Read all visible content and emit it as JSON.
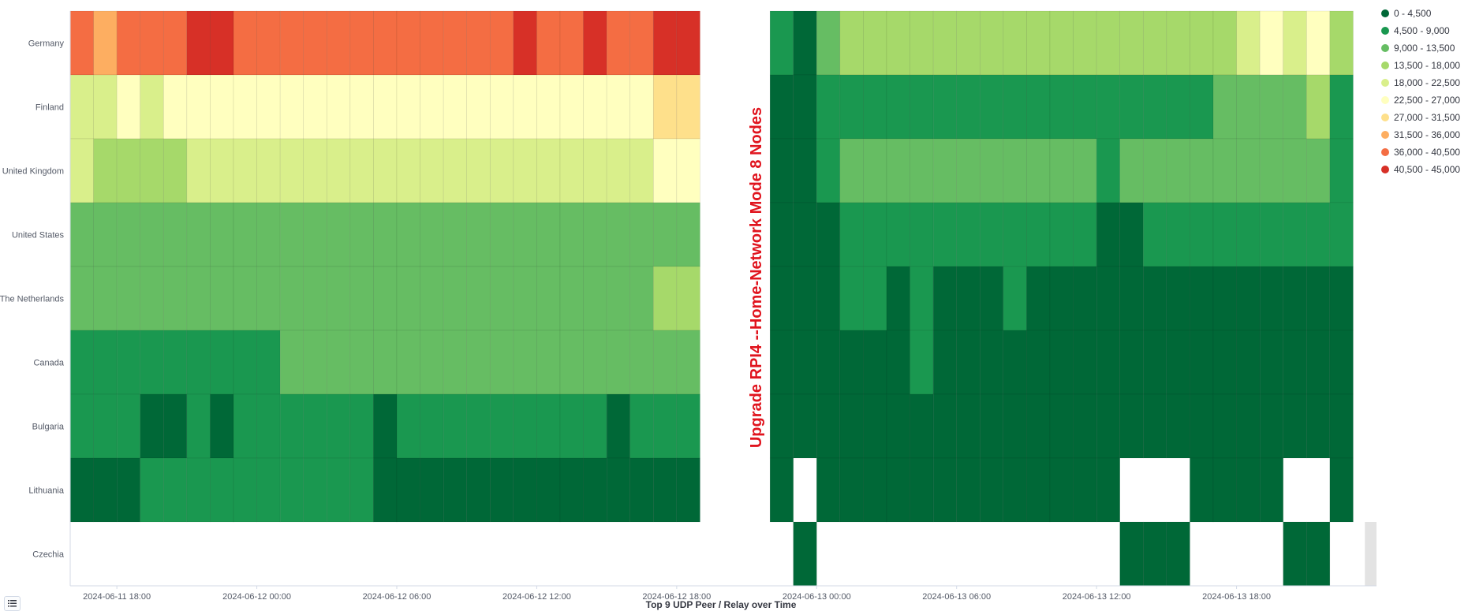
{
  "chart_data": {
    "type": "heatmap",
    "xlabel": "Top 9 UDP Peer / Relay over Time",
    "annotation": "Upgrade RPI4 --Home-Network Mode 8 Nodes",
    "y_categories": [
      "Germany",
      "Finland",
      "United Kingdom",
      "United States",
      "The Netherlands",
      "Canada",
      "Bulgaria",
      "Lithuania",
      "Czechia"
    ],
    "x_tick_labels": [
      "2024-06-11 18:00",
      "2024-06-12 00:00",
      "2024-06-12 06:00",
      "2024-06-12 12:00",
      "2024-06-12 18:00",
      "2024-06-13 00:00",
      "2024-06-13 06:00",
      "2024-06-13 12:00",
      "2024-06-13 18:00"
    ],
    "x_range": [
      "2024-06-11 16:00",
      "2024-06-14 00:00"
    ],
    "bucket_interval_hours": 1,
    "left_panel_buckets": [
      "2024-06-11 16:00",
      "2024-06-11 17:00",
      "2024-06-11 18:00",
      "2024-06-11 19:00",
      "2024-06-11 20:00",
      "2024-06-11 21:00",
      "2024-06-11 22:00",
      "2024-06-11 23:00",
      "2024-06-12 00:00",
      "2024-06-12 01:00",
      "2024-06-12 02:00",
      "2024-06-12 03:00",
      "2024-06-12 04:00",
      "2024-06-12 05:00",
      "2024-06-12 06:00",
      "2024-06-12 07:00",
      "2024-06-12 08:00",
      "2024-06-12 09:00",
      "2024-06-12 10:00",
      "2024-06-12 11:00",
      "2024-06-12 12:00",
      "2024-06-12 13:00",
      "2024-06-12 14:00",
      "2024-06-12 15:00",
      "2024-06-12 16:00",
      "2024-06-12 17:00",
      "2024-06-12 18:00"
    ],
    "right_panel_buckets": [
      "2024-06-12 22:00",
      "2024-06-12 23:00",
      "2024-06-13 00:00",
      "2024-06-13 01:00",
      "2024-06-13 02:00",
      "2024-06-13 03:00",
      "2024-06-13 04:00",
      "2024-06-13 05:00",
      "2024-06-13 06:00",
      "2024-06-13 07:00",
      "2024-06-13 08:00",
      "2024-06-13 09:00",
      "2024-06-13 10:00",
      "2024-06-13 11:00",
      "2024-06-13 12:00",
      "2024-06-13 13:00",
      "2024-06-13 14:00",
      "2024-06-13 15:00",
      "2024-06-13 16:00",
      "2024-06-13 17:00",
      "2024-06-13 18:00",
      "2024-06-13 19:00",
      "2024-06-13 20:00",
      "2024-06-13 21:00",
      "2024-06-13 22:00"
    ],
    "legend": {
      "position": "right",
      "ranges": [
        "0 - 4,500",
        "4,500 - 9,000",
        "9,000 - 13,500",
        "13,500 - 18,000",
        "18,000 - 22,500",
        "22,500 - 27,000",
        "27,000 - 31,500",
        "31,500 - 36,000",
        "36,000 - 40,500",
        "40,500 - 45,000"
      ],
      "colors": [
        "#006837",
        "#1a9850",
        "#66bd63",
        "#a6d96a",
        "#d9ef8b",
        "#ffffbf",
        "#fee08b",
        "#fdae61",
        "#f46d43",
        "#d73027"
      ]
    },
    "left_panel_bins": [
      [
        8,
        7,
        8,
        8,
        8,
        9,
        9,
        8,
        8,
        8,
        8,
        8,
        8,
        8,
        8,
        8,
        8,
        8,
        8,
        9,
        8,
        8,
        9,
        8,
        8,
        9,
        9
      ],
      [
        4,
        4,
        5,
        4,
        5,
        5,
        5,
        5,
        5,
        5,
        5,
        5,
        5,
        5,
        5,
        5,
        5,
        5,
        5,
        5,
        5,
        5,
        5,
        5,
        5,
        6,
        6
      ],
      [
        4,
        3,
        3,
        3,
        3,
        4,
        4,
        4,
        4,
        4,
        4,
        4,
        4,
        4,
        4,
        4,
        4,
        4,
        4,
        4,
        4,
        4,
        4,
        4,
        4,
        5,
        5
      ],
      [
        2,
        2,
        2,
        2,
        2,
        2,
        2,
        2,
        2,
        2,
        2,
        2,
        2,
        2,
        2,
        2,
        2,
        2,
        2,
        2,
        2,
        2,
        2,
        2,
        2,
        2,
        2
      ],
      [
        2,
        2,
        2,
        2,
        2,
        2,
        2,
        2,
        2,
        2,
        2,
        2,
        2,
        2,
        2,
        2,
        2,
        2,
        2,
        2,
        2,
        2,
        2,
        2,
        2,
        3,
        3
      ],
      [
        1,
        1,
        1,
        1,
        1,
        1,
        1,
        1,
        1,
        2,
        2,
        2,
        2,
        2,
        2,
        2,
        2,
        2,
        2,
        2,
        2,
        2,
        2,
        2,
        2,
        2,
        2
      ],
      [
        1,
        1,
        1,
        0,
        0,
        1,
        0,
        1,
        1,
        1,
        1,
        1,
        1,
        0,
        1,
        1,
        1,
        1,
        1,
        1,
        1,
        1,
        1,
        0,
        1,
        1,
        1
      ],
      [
        0,
        0,
        0,
        1,
        1,
        1,
        1,
        1,
        1,
        1,
        1,
        1,
        1,
        0,
        0,
        0,
        0,
        0,
        0,
        0,
        0,
        0,
        0,
        0,
        0,
        0,
        0
      ],
      [
        null,
        null,
        null,
        null,
        null,
        null,
        null,
        null,
        null,
        null,
        null,
        null,
        null,
        null,
        null,
        null,
        null,
        null,
        null,
        null,
        null,
        null,
        null,
        null,
        null,
        null,
        null
      ]
    ],
    "right_panel_bins": [
      [
        1,
        0,
        2,
        3,
        3,
        3,
        3,
        3,
        3,
        3,
        3,
        3,
        3,
        3,
        3,
        3,
        3,
        3,
        3,
        3,
        4,
        5,
        4,
        5,
        3
      ],
      [
        0,
        0,
        1,
        1,
        1,
        1,
        1,
        1,
        1,
        1,
        1,
        1,
        1,
        1,
        1,
        1,
        1,
        1,
        1,
        2,
        2,
        2,
        2,
        3,
        1
      ],
      [
        0,
        0,
        1,
        2,
        2,
        2,
        2,
        2,
        2,
        2,
        2,
        2,
        2,
        2,
        1,
        2,
        2,
        2,
        2,
        2,
        2,
        2,
        2,
        2,
        1
      ],
      [
        0,
        0,
        0,
        1,
        1,
        1,
        1,
        1,
        1,
        1,
        1,
        1,
        1,
        1,
        0,
        0,
        1,
        1,
        1,
        1,
        1,
        1,
        1,
        1,
        1
      ],
      [
        0,
        0,
        0,
        1,
        1,
        0,
        1,
        0,
        0,
        0,
        1,
        0,
        0,
        0,
        0,
        0,
        0,
        0,
        0,
        0,
        0,
        0,
        0,
        0,
        0
      ],
      [
        0,
        0,
        0,
        0,
        0,
        0,
        1,
        0,
        0,
        0,
        0,
        0,
        0,
        0,
        0,
        0,
        0,
        0,
        0,
        0,
        0,
        0,
        0,
        0,
        0
      ],
      [
        0,
        0,
        0,
        0,
        0,
        0,
        0,
        0,
        0,
        0,
        0,
        0,
        0,
        0,
        0,
        0,
        0,
        0,
        0,
        0,
        0,
        0,
        0,
        0,
        0
      ],
      [
        0,
        null,
        0,
        0,
        0,
        0,
        0,
        0,
        0,
        0,
        0,
        0,
        0,
        0,
        0,
        null,
        null,
        null,
        0,
        0,
        0,
        0,
        null,
        null,
        0
      ],
      [
        null,
        0,
        null,
        null,
        null,
        null,
        null,
        null,
        null,
        null,
        null,
        null,
        null,
        null,
        null,
        0,
        0,
        0,
        null,
        null,
        null,
        null,
        0,
        0,
        null
      ]
    ],
    "partial_bucket_czechia": "2024-06-13 23:00"
  }
}
